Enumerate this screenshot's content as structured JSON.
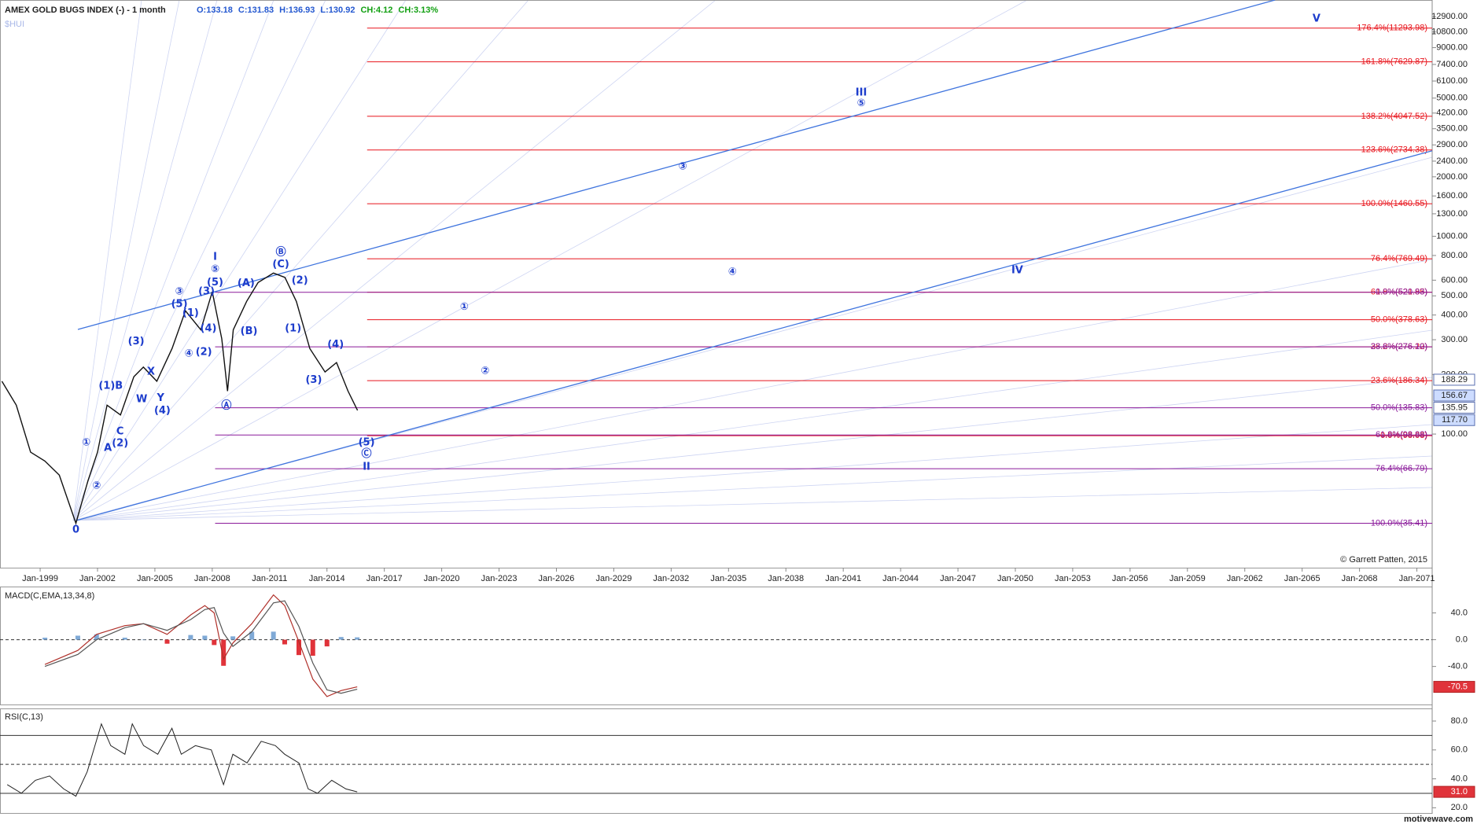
{
  "chart_data": [
    {
      "type": "line",
      "title": "AMEX GOLD BUGS INDEX (-) - 1 month",
      "subtitle": "$HUI",
      "stats": [
        {
          "text": "O:133.18",
          "color": "#2458d0"
        },
        {
          "text": "C:131.83",
          "color": "#2458d0"
        },
        {
          "text": "H:136.93",
          "color": "#2458d0"
        },
        {
          "text": "L:130.92",
          "color": "#2458d0"
        },
        {
          "text": "CH:4.12",
          "color": "#12a012"
        },
        {
          "text": "CH:3.13%",
          "color": "#12a012"
        }
      ],
      "log": true,
      "xlim": [
        1996.9,
        2071.8
      ],
      "xticks": [
        {
          "value": 1999,
          "label": "Jan-1999"
        },
        {
          "value": 2002,
          "label": "Jan-2002"
        },
        {
          "value": 2005,
          "label": "Jan-2005"
        },
        {
          "value": 2008,
          "label": "Jan-2008"
        },
        {
          "value": 2011,
          "label": "Jan-2011"
        },
        {
          "value": 2014,
          "label": "Jan-2014"
        },
        {
          "value": 2017,
          "label": "Jan-2017"
        },
        {
          "value": 2020,
          "label": "Jan-2020"
        },
        {
          "value": 2023,
          "label": "Jan-2023"
        },
        {
          "value": 2026,
          "label": "Jan-2026"
        },
        {
          "value": 2029,
          "label": "Jan-2029"
        },
        {
          "value": 2032,
          "label": "Jan-2032"
        },
        {
          "value": 2035,
          "label": "Jan-2035"
        },
        {
          "value": 2038,
          "label": "Jan-2038"
        },
        {
          "value": 2041,
          "label": "Jan-2041"
        },
        {
          "value": 2044,
          "label": "Jan-2044"
        },
        {
          "value": 2047,
          "label": "Jan-2047"
        },
        {
          "value": 2050,
          "label": "Jan-2050"
        },
        {
          "value": 2053,
          "label": "Jan-2053"
        },
        {
          "value": 2056,
          "label": "Jan-2056"
        },
        {
          "value": 2059,
          "label": "Jan-2059"
        },
        {
          "value": 2062,
          "label": "Jan-2062"
        },
        {
          "value": 2065,
          "label": "Jan-2065"
        },
        {
          "value": 2068,
          "label": "Jan-2068"
        },
        {
          "value": 2071,
          "label": "Jan-2071"
        }
      ],
      "ylim": [
        21.1,
        15670
      ],
      "yticks": [
        {
          "value": 12900,
          "label": "12900.00"
        },
        {
          "value": 10800,
          "label": "10800.00"
        },
        {
          "value": 9000,
          "label": "9000.00"
        },
        {
          "value": 7400,
          "label": "7400.00"
        },
        {
          "value": 6100,
          "label": "6100.00"
        },
        {
          "value": 5000,
          "label": "5000.00"
        },
        {
          "value": 4200,
          "label": "4200.00"
        },
        {
          "value": 3500,
          "label": "3500.00"
        },
        {
          "value": 2900,
          "label": "2900.00"
        },
        {
          "value": 2400,
          "label": "2400.00"
        },
        {
          "value": 2000,
          "label": "2000.00"
        },
        {
          "value": 1600,
          "label": "1600.00"
        },
        {
          "value": 1300,
          "label": "1300.00"
        },
        {
          "value": 1000,
          "label": "1000.00"
        },
        {
          "value": 800,
          "label": "800.00"
        },
        {
          "value": 600,
          "label": "600.00"
        },
        {
          "value": 500,
          "label": "500.00"
        },
        {
          "value": 400,
          "label": "400.00"
        },
        {
          "value": 300,
          "label": "300.00"
        },
        {
          "value": 200,
          "label": "200.00"
        },
        {
          "value": 100,
          "label": "100.00"
        }
      ],
      "series": [
        {
          "color": "#111111",
          "x": [
            1997.0,
            1997.75,
            1998.5,
            1999.25,
            2000.0,
            2000.87,
            2001.5,
            2002.0,
            2002.5,
            2003.2,
            2003.9,
            2004.4,
            2005.1,
            2005.9,
            2006.6,
            2007.4,
            2008.0,
            2008.5,
            2008.8,
            2009.1,
            2009.8,
            2010.4,
            2011.2,
            2011.8,
            2012.4,
            2013.1,
            2013.9,
            2014.5,
            2015.1,
            2015.6
          ],
          "values": [
            185,
            140,
            81,
            73,
            62,
            35.41,
            58,
            81,
            140,
            125,
            195,
            218,
            185,
            271,
            420,
            337,
            524,
            303,
            165,
            337,
            469,
            584,
            652,
            620,
            469,
            271,
            206,
            230,
            165,
            131.83
          ]
        }
      ],
      "price_markers": [
        {
          "value": 188.29,
          "label": "188.29",
          "fill": "#ffffff"
        },
        {
          "value": 156.67,
          "label": "156.67",
          "fill": "#cddcff"
        },
        {
          "value": 135.95,
          "label": "135.95",
          "fill": "#ffffff"
        },
        {
          "value": 117.7,
          "label": "117.70",
          "fill": "#cddcff"
        }
      ],
      "fib_sets": [
        {
          "color": "#e8141c",
          "start": 2016.1,
          "levels": [
            {
              "value": 11293.98,
              "label": "176.4%(11293.98)"
            },
            {
              "value": 7629.87,
              "label": "161.8%(7629.87)"
            },
            {
              "value": 4047.52,
              "label": "138.2%(4047.52)"
            },
            {
              "value": 2734.38,
              "label": "123.6%(2734.38)"
            },
            {
              "value": 1460.55,
              "label": "100.0%(1460.55)"
            },
            {
              "value": 769.49,
              "label": "76.4%(769.49)"
            },
            {
              "value": 521.85,
              "label": "61.8%(521.85)"
            },
            {
              "value": 378.63,
              "label": "50.0%(378.63)"
            },
            {
              "value": 276.22,
              "label": "38.2%(276.22)"
            },
            {
              "value": 186.34,
              "label": "23.6%(186.34)"
            },
            {
              "value": 98.08,
              "label": "0.0%(98.08)"
            }
          ]
        },
        {
          "color": "#8a1a9a",
          "start": 2008.15,
          "levels": [
            {
              "value": 520.93,
              "label": "0.0%(520.93)"
            },
            {
              "value": 276.1,
              "label": "23.6%(276.10)"
            },
            {
              "value": 135.83,
              "label": "50.0%(135.83)"
            },
            {
              "value": 98.88,
              "label": "61.8%(98.88)"
            },
            {
              "value": 66.79,
              "label": "76.4%(66.79)"
            },
            {
              "value": 35.41,
              "label": "100.0%(35.41)"
            }
          ]
        }
      ],
      "trendlines": [
        {
          "color": "#3f74de",
          "x": [
            2000.97,
            2063.58
          ],
          "values": [
            338,
            15670
          ]
        },
        {
          "color": "#3f74de",
          "x": [
            2000.87,
            2071.8
          ],
          "values": [
            36.5,
            2710
          ]
        }
      ],
      "annotation_color": "#1c3ccc",
      "annotations": [
        {
          "text": "0",
          "x": 2000.87,
          "y": 32.7
        },
        {
          "text": "①",
          "x": 2001.41,
          "y": 90.6
        },
        {
          "text": "②",
          "x": 2001.95,
          "y": 54.7
        },
        {
          "text": "A",
          "x": 2002.54,
          "y": 84.8
        },
        {
          "text": "(2)",
          "x": 2003.18,
          "y": 89.6
        },
        {
          "text": "C",
          "x": 2003.18,
          "y": 103
        },
        {
          "text": "(1)B",
          "x": 2002.69,
          "y": 175
        },
        {
          "text": "(3)",
          "x": 2004.02,
          "y": 293
        },
        {
          "text": "W",
          "x": 2004.31,
          "y": 150
        },
        {
          "text": "X",
          "x": 2004.8,
          "y": 206
        },
        {
          "text": "Y",
          "x": 2005.3,
          "y": 152
        },
        {
          "text": "(4)",
          "x": 2005.39,
          "y": 131
        },
        {
          "text": "③",
          "x": 2006.28,
          "y": 524
        },
        {
          "text": "(5)",
          "x": 2006.28,
          "y": 454
        },
        {
          "text": "(1)",
          "x": 2006.87,
          "y": 407
        },
        {
          "text": "④",
          "x": 2006.77,
          "y": 254
        },
        {
          "text": "(2)",
          "x": 2007.56,
          "y": 259
        },
        {
          "text": "(4)",
          "x": 2007.8,
          "y": 341
        },
        {
          "text": "(3)",
          "x": 2007.7,
          "y": 524
        },
        {
          "text": "(5)",
          "x": 2008.15,
          "y": 584
        },
        {
          "text": "⑤",
          "x": 2008.15,
          "y": 681
        },
        {
          "text": "I",
          "x": 2008.15,
          "y": 786
        },
        {
          "text": "(A)",
          "x": 2009.77,
          "y": 578
        },
        {
          "text": "(B)",
          "x": 2009.92,
          "y": 330
        },
        {
          "text": "Ⓐ",
          "x": 2008.74,
          "y": 139
        },
        {
          "text": "Ⓑ",
          "x": 2011.59,
          "y": 830
        },
        {
          "text": "(C)",
          "x": 2011.59,
          "y": 719
        },
        {
          "text": "(2)",
          "x": 2012.58,
          "y": 597
        },
        {
          "text": "(1)",
          "x": 2012.23,
          "y": 341
        },
        {
          "text": "(3)",
          "x": 2013.31,
          "y": 187
        },
        {
          "text": "(4)",
          "x": 2014.45,
          "y": 283
        },
        {
          "text": "(5)",
          "x": 2016.07,
          "y": 90.6
        },
        {
          "text": "Ⓒ",
          "x": 2016.07,
          "y": 79.4
        },
        {
          "text": "II",
          "x": 2016.07,
          "y": 68.1
        },
        {
          "text": "①",
          "x": 2021.18,
          "y": 439
        },
        {
          "text": "②",
          "x": 2022.27,
          "y": 208
        },
        {
          "text": "③",
          "x": 2032.6,
          "y": 2250
        },
        {
          "text": "④",
          "x": 2035.2,
          "y": 659
        },
        {
          "text": "⑤",
          "x": 2041.94,
          "y": 4700
        },
        {
          "text": "III",
          "x": 2041.94,
          "y": 5330
        },
        {
          "text": "IV",
          "x": 2050.1,
          "y": 673
        },
        {
          "text": "V",
          "x": 2065.75,
          "y": 12600
        }
      ],
      "credit": "© Garrett Patten, 2015"
    },
    {
      "type": "macd",
      "title": "MACD(C,EMA,13,34,8)",
      "xlim": [
        1996.9,
        2071.8
      ],
      "ylim": [
        -93.3,
        74.7
      ],
      "yticks": [
        {
          "value": 40,
          "label": "40.0"
        },
        {
          "value": 0,
          "label": "0.0"
        },
        {
          "value": -40,
          "label": "-40.0"
        }
      ],
      "last": -70.5,
      "x": [
        1999.25,
        2000.97,
        2001.95,
        2003.43,
        2004.41,
        2005.64,
        2006.87,
        2007.61,
        2008.1,
        2008.59,
        2009.08,
        2010.07,
        2011.2,
        2011.79,
        2012.53,
        2013.26,
        2014.0,
        2014.74,
        2015.58
      ],
      "series": [
        {
          "color": "#b0302a",
          "values": [
            -37,
            -16,
            8,
            21,
            24,
            8,
            37,
            51,
            40,
            -29,
            -5,
            24,
            67,
            51,
            -3,
            -59,
            -85,
            -76,
            -70.5
          ]
        },
        {
          "color": "#555555",
          "values": [
            -40,
            -22,
            0,
            18,
            24,
            14,
            30,
            45,
            48,
            10,
            -10,
            12,
            55,
            58,
            20,
            -35,
            -75,
            -80,
            -74
          ]
        }
      ],
      "histogram": [
        3,
        6,
        8,
        3,
        0,
        -6,
        7,
        6,
        -8,
        -39,
        5,
        12,
        12,
        -7,
        -23,
        -24,
        -10,
        4,
        3.5
      ],
      "up_color": "#7fa9d6",
      "down_color": "#e0333a"
    },
    {
      "type": "rsi",
      "title": "RSI(C,13)",
      "xlim": [
        1996.9,
        2071.8
      ],
      "ylim": [
        18,
        86
      ],
      "yticks": [
        {
          "value": 80,
          "label": "80.0"
        },
        {
          "value": 60,
          "label": "60.0"
        },
        {
          "value": 40,
          "label": "40.0"
        },
        {
          "value": 20,
          "label": "20.0"
        }
      ],
      "levels": [
        70,
        50,
        30
      ],
      "last": {
        "value": 31,
        "label": "31.0"
      },
      "color": "#222222",
      "x": [
        1997.28,
        1998.02,
        1998.75,
        1999.49,
        2000.23,
        2000.87,
        2001.46,
        2002.2,
        2002.69,
        2003.43,
        2003.82,
        2004.41,
        2005.15,
        2005.89,
        2006.38,
        2007.12,
        2007.95,
        2008.59,
        2009.08,
        2009.82,
        2010.56,
        2011.3,
        2011.79,
        2012.53,
        2013.02,
        2013.51,
        2014.25,
        2014.99,
        2015.58
      ],
      "values": [
        36,
        30,
        39,
        42,
        33,
        28,
        45,
        78,
        63,
        57,
        78,
        63,
        57,
        75,
        57,
        63,
        60,
        36,
        57,
        51,
        66,
        63,
        57,
        51,
        33,
        30,
        39,
        33,
        31
      ]
    }
  ],
  "footer": "motivewave.com"
}
